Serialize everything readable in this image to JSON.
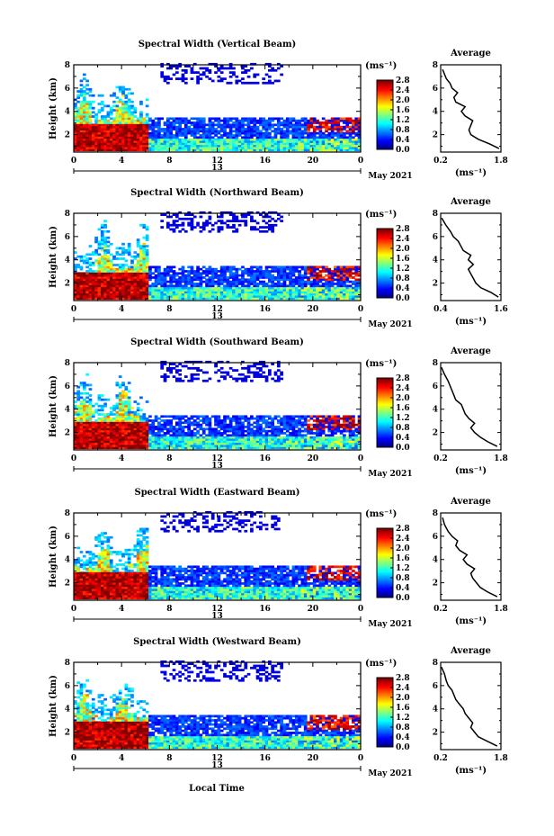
{
  "figure": {
    "xlabel": "Local Time",
    "date_label": "13",
    "month_label": "May 2021"
  },
  "chart_data": [
    {
      "type": "heatmap",
      "title": "Spectral Width (Vertical Beam)",
      "ylabel": "Height (km)",
      "xlabel": "Local Time",
      "x_ticks": [
        "0",
        "4",
        "8",
        "12",
        "16",
        "20",
        "0"
      ],
      "y_ticks": [
        "2",
        "4",
        "6",
        "8"
      ],
      "xlim": [
        0,
        24
      ],
      "ylim": [
        0.5,
        8
      ],
      "colorbar": {
        "unit": "(ms⁻¹)",
        "ticks": [
          "0.0",
          "0.4",
          "0.8",
          "1.2",
          "1.6",
          "2.0",
          "2.4",
          "2.8"
        ],
        "range": [
          0,
          2.8
        ]
      },
      "average": {
        "title": "Average",
        "xlabel": "(ms⁻¹)",
        "x_ticks": [
          "0.2",
          "1.8"
        ],
        "xlim": [
          0.2,
          1.8
        ],
        "y_ticks": [
          "2",
          "4",
          "6",
          "8"
        ],
        "ylim": [
          0.5,
          8
        ],
        "profile": [
          [
            1.75,
            0.8
          ],
          [
            1.5,
            1.2
          ],
          [
            1.2,
            1.6
          ],
          [
            1.0,
            2.0
          ],
          [
            0.95,
            2.4
          ],
          [
            1.0,
            2.8
          ],
          [
            1.05,
            3.2
          ],
          [
            0.85,
            3.6
          ],
          [
            0.75,
            4.0
          ],
          [
            0.85,
            4.4
          ],
          [
            0.6,
            4.8
          ],
          [
            0.55,
            5.2
          ],
          [
            0.65,
            5.6
          ],
          [
            0.5,
            6.0
          ],
          [
            0.45,
            6.4
          ],
          [
            0.35,
            6.8
          ],
          [
            0.25,
            7.6
          ]
        ]
      }
    },
    {
      "type": "heatmap",
      "title": "Spectral Width (Northward Beam)",
      "ylabel": "Height (km)",
      "xlabel": "Local Time",
      "x_ticks": [
        "0",
        "4",
        "8",
        "12",
        "16",
        "20",
        "0"
      ],
      "y_ticks": [
        "2",
        "4",
        "6",
        "8"
      ],
      "xlim": [
        0,
        24
      ],
      "ylim": [
        0.5,
        8
      ],
      "colorbar": {
        "unit": "(ms⁻¹)",
        "ticks": [
          "0.0",
          "0.4",
          "0.8",
          "1.2",
          "1.6",
          "2.0",
          "2.4",
          "2.8"
        ],
        "range": [
          0,
          2.8
        ]
      },
      "average": {
        "title": "Average",
        "xlabel": "(ms⁻¹)",
        "x_ticks": [
          "0.4",
          "1.6"
        ],
        "xlim": [
          0.4,
          1.6
        ],
        "y_ticks": [
          "2",
          "4",
          "6",
          "8"
        ],
        "ylim": [
          0.5,
          8
        ],
        "profile": [
          [
            1.55,
            0.8
          ],
          [
            1.4,
            1.2
          ],
          [
            1.2,
            1.6
          ],
          [
            1.1,
            2.0
          ],
          [
            1.05,
            2.4
          ],
          [
            1.0,
            2.8
          ],
          [
            0.95,
            3.2
          ],
          [
            1.05,
            3.6
          ],
          [
            0.95,
            4.0
          ],
          [
            1.0,
            4.4
          ],
          [
            0.85,
            4.8
          ],
          [
            0.8,
            5.2
          ],
          [
            0.75,
            5.6
          ],
          [
            0.65,
            6.0
          ],
          [
            0.6,
            6.4
          ],
          [
            0.5,
            7.0
          ],
          [
            0.42,
            7.6
          ]
        ]
      }
    },
    {
      "type": "heatmap",
      "title": "Spectral Width (Southward Beam)",
      "ylabel": "Height (km)",
      "xlabel": "Local Time",
      "x_ticks": [
        "0",
        "4",
        "8",
        "12",
        "16",
        "20",
        "0"
      ],
      "y_ticks": [
        "2",
        "4",
        "6",
        "8"
      ],
      "xlim": [
        0,
        24
      ],
      "ylim": [
        0.5,
        8
      ],
      "colorbar": {
        "unit": "(ms⁻¹)",
        "ticks": [
          "0.0",
          "0.4",
          "0.8",
          "1.2",
          "1.6",
          "2.0",
          "2.4",
          "2.8"
        ],
        "range": [
          0,
          2.8
        ]
      },
      "average": {
        "title": "Average",
        "xlabel": "(ms⁻¹)",
        "x_ticks": [
          "0.2",
          "1.8"
        ],
        "xlim": [
          0.2,
          1.8
        ],
        "y_ticks": [
          "2",
          "4",
          "6",
          "8"
        ],
        "ylim": [
          0.5,
          8
        ],
        "profile": [
          [
            1.7,
            0.8
          ],
          [
            1.45,
            1.2
          ],
          [
            1.25,
            1.6
          ],
          [
            1.1,
            2.0
          ],
          [
            1.0,
            2.4
          ],
          [
            1.1,
            2.8
          ],
          [
            0.95,
            3.2
          ],
          [
            0.85,
            3.6
          ],
          [
            0.8,
            4.0
          ],
          [
            0.75,
            4.4
          ],
          [
            0.6,
            4.8
          ],
          [
            0.55,
            5.2
          ],
          [
            0.5,
            5.6
          ],
          [
            0.45,
            6.0
          ],
          [
            0.4,
            6.4
          ],
          [
            0.3,
            7.0
          ],
          [
            0.22,
            7.6
          ]
        ]
      }
    },
    {
      "type": "heatmap",
      "title": "Spectral Width (Eastward Beam)",
      "ylabel": "Height (km)",
      "xlabel": "Local Time",
      "x_ticks": [
        "0",
        "4",
        "8",
        "12",
        "16",
        "20",
        "0"
      ],
      "y_ticks": [
        "2",
        "4",
        "6",
        "8"
      ],
      "xlim": [
        0,
        24
      ],
      "ylim": [
        0.5,
        8
      ],
      "colorbar": {
        "unit": "(ms⁻¹)",
        "ticks": [
          "0.0",
          "0.4",
          "0.8",
          "1.2",
          "1.6",
          "2.0",
          "2.4",
          "2.8"
        ],
        "range": [
          0,
          2.8
        ]
      },
      "average": {
        "title": "Average",
        "xlabel": "(ms⁻¹)",
        "x_ticks": [
          "0.2",
          "1.8"
        ],
        "xlim": [
          0.2,
          1.8
        ],
        "y_ticks": [
          "2",
          "4",
          "6",
          "8"
        ],
        "ylim": [
          0.5,
          8
        ],
        "profile": [
          [
            1.7,
            0.8
          ],
          [
            1.45,
            1.2
          ],
          [
            1.25,
            1.6
          ],
          [
            1.15,
            2.0
          ],
          [
            1.05,
            2.4
          ],
          [
            1.0,
            2.8
          ],
          [
            1.1,
            3.2
          ],
          [
            0.9,
            3.6
          ],
          [
            0.8,
            4.0
          ],
          [
            0.9,
            4.4
          ],
          [
            0.7,
            4.8
          ],
          [
            0.6,
            5.2
          ],
          [
            0.65,
            5.6
          ],
          [
            0.5,
            6.0
          ],
          [
            0.4,
            6.4
          ],
          [
            0.3,
            7.0
          ],
          [
            0.25,
            7.6
          ]
        ]
      }
    },
    {
      "type": "heatmap",
      "title": "Spectral Width (Westward Beam)",
      "ylabel": "Height (km)",
      "xlabel": "Local Time",
      "x_ticks": [
        "0",
        "4",
        "8",
        "12",
        "16",
        "20",
        "0"
      ],
      "y_ticks": [
        "2",
        "4",
        "6",
        "8"
      ],
      "xlim": [
        0,
        24
      ],
      "ylim": [
        0.5,
        8
      ],
      "colorbar": {
        "unit": "(ms⁻¹)",
        "ticks": [
          "0.0",
          "0.4",
          "0.8",
          "1.2",
          "1.6",
          "2.0",
          "2.4",
          "2.8"
        ],
        "range": [
          0,
          2.8
        ]
      },
      "average": {
        "title": "Average",
        "xlabel": "(ms⁻¹)",
        "x_ticks": [
          "0.2",
          "1.8"
        ],
        "xlim": [
          0.2,
          1.8
        ],
        "y_ticks": [
          "2",
          "4",
          "6",
          "8"
        ],
        "ylim": [
          0.5,
          8
        ],
        "profile": [
          [
            1.7,
            0.8
          ],
          [
            1.45,
            1.2
          ],
          [
            1.2,
            1.6
          ],
          [
            1.1,
            2.0
          ],
          [
            1.0,
            2.4
          ],
          [
            1.05,
            2.8
          ],
          [
            0.95,
            3.2
          ],
          [
            0.85,
            3.6
          ],
          [
            0.8,
            4.0
          ],
          [
            0.7,
            4.4
          ],
          [
            0.6,
            4.8
          ],
          [
            0.55,
            5.2
          ],
          [
            0.5,
            5.6
          ],
          [
            0.4,
            6.0
          ],
          [
            0.35,
            6.4
          ],
          [
            0.3,
            7.0
          ],
          [
            0.22,
            7.6
          ]
        ]
      }
    }
  ]
}
